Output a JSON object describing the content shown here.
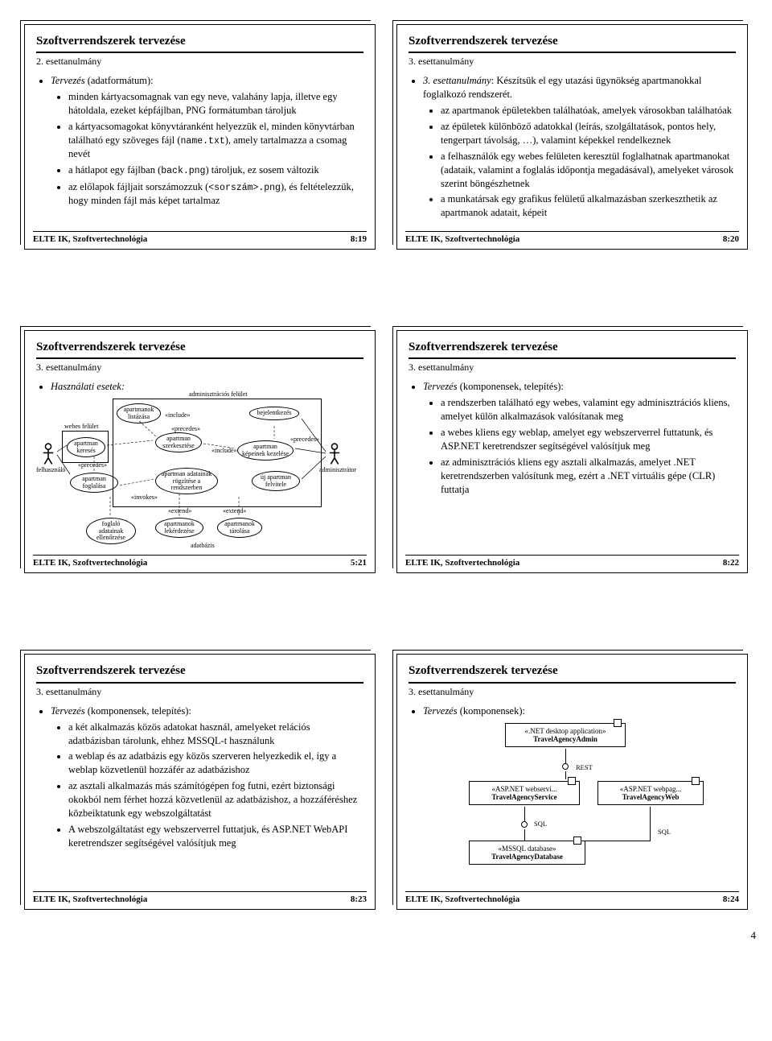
{
  "page_number": "4",
  "common": {
    "footer_left": "ELTE IK, Szoftvertechnológia",
    "title": "Szoftverrendszerek tervezése"
  },
  "slides": [
    {
      "subtitle": "2. esettanulmány",
      "footer_right": "8:19",
      "intro_em": "Tervezés ",
      "intro_rest": "(adatformátum):",
      "items": [
        "minden kártyacsomagnak van egy neve, valahány lapja, illetve egy hátoldala, ezeket képfájlban, PNG formátumban tároljuk",
        "a kártyacsomagokat könyvtáranként helyezzük el, minden könyvtárban található egy szöveges fájl (<span class=\"mono\">name.txt</span>), amely tartalmazza a csomag nevét",
        "a hátlapot egy fájlban (<span class=\"mono\">back.png</span>) tároljuk, ez sosem változik",
        "az előlapok fájljait sorszámozzuk (<span class=\"mono\">&lt;sorszám&gt;.png</span>), és feltételezzük, hogy minden fájl más képet tartalmaz"
      ]
    },
    {
      "subtitle": "3. esettanulmány",
      "footer_right": "8:20",
      "intro_em": "3. esettanulmány",
      "intro_rest": ": Készítsük el egy utazási ügynökség apartmanokkal foglalkozó rendszerét.",
      "items": [
        "az apartmanok épületekben találhatóak, amelyek városokban találhatóak",
        "az épületek különböző adatokkal (leírás, szolgáltatások, pontos hely, tengerpart távolság, …), valamint képekkel rendelkeznek",
        "a felhasználók egy webes felületen keresztül foglalhatnak apartmanokat (adataik, valamint a foglalás időpontja megadásával), amelyeket városok szerint böngészhetnek",
        "a munkatársak egy grafikus felületű alkalmazásban szerkeszthetik az apartmanok adatait, képeit"
      ]
    },
    {
      "subtitle": "3. esettanulmány",
      "footer_right": "5:21",
      "intro_em": "Használati esetek:",
      "intro_rest": "",
      "diagram": "usecase",
      "uc": {
        "actors": {
          "left": "felhasználó",
          "right": "adminisztrátor"
        },
        "top_label": "adminisztrációs felület",
        "left_label": "webes felület",
        "ovals": {
          "o1": "apartmanok listázása",
          "o2": "bejelentkezés",
          "o3": "apartman keresés",
          "o4": "apartman szerkesztése",
          "o5": "apartman képeinek kezelése",
          "o6": "apartman foglalása",
          "o7": "apartman adatainak rögzítése a rendszerben",
          "o8": "új apartman felvitele",
          "o9": "foglaló adatainak ellenőrzése",
          "o10": "apartmanok lekérdezése",
          "o11": "apartmanok tárolása"
        },
        "edge_labels": [
          "«include»",
          "«precedes»",
          "«include»",
          "«precedes»",
          "«precedes»",
          "«invokes»",
          "«extend»",
          "«extend»",
          "adatbázis"
        ]
      }
    },
    {
      "subtitle": "3. esettanulmány",
      "footer_right": "8:22",
      "intro_em": "Tervezés ",
      "intro_rest": "(komponensek, telepítés):",
      "items": [
        "a rendszerben található egy webes, valamint egy adminisztrációs kliens, amelyet külön alkalmazások valósítanak meg",
        "a webes kliens egy weblap, amelyet egy webszerverrel futtatunk, és ASP.NET keretrendszer segítségével valósítjuk meg",
        "az adminisztrációs kliens egy asztali alkalmazás, amelyet .NET keretrendszerben valósítunk meg, ezért a .NET virtuális gépe (CLR) futtatja"
      ]
    },
    {
      "subtitle": "3. esettanulmány",
      "footer_right": "8:23",
      "intro_em": "Tervezés ",
      "intro_rest": "(komponensek, telepítés):",
      "items": [
        "a két alkalmazás közös adatokat használ, amelyeket relációs adatbázisban tárolunk, ehhez MSSQL-t használunk",
        "a weblap és az adatbázis egy közös szerveren helyezkedik el, így a weblap közvetlenül hozzáfér az adatbázishoz",
        "az asztali alkalmazás más számítógépen fog futni, ezért biztonsági okokból nem férhet hozzá közvetlenül az adatbázishoz, a hozzáféréshez közbeiktatunk egy webszolgáltatást",
        "A webszolgáltatást egy webszerverrel futtatjuk, és ASP.NET WebAPI keretrendszer segítségével valósítjuk meg"
      ]
    },
    {
      "subtitle": "3. esettanulmány",
      "footer_right": "8:24",
      "intro_em": "Tervezés ",
      "intro_rest": "(komponensek):",
      "diagram": "components",
      "comp": {
        "b1": {
          "stereo": "«.NET desktop application»",
          "name": "TravelAgencyAdmin"
        },
        "b2": {
          "stereo": "«ASP.NET webservi...",
          "name": "TravelAgencyService"
        },
        "b3": {
          "stereo": "«ASP.NET webpag...",
          "name": "TravelAgencyWeb"
        },
        "b4": {
          "stereo": "«MSSQL database»",
          "name": "TravelAgencyDatabase"
        },
        "l_rest": "REST",
        "l_sql1": "SQL",
        "l_sql2": "SQL"
      }
    }
  ]
}
